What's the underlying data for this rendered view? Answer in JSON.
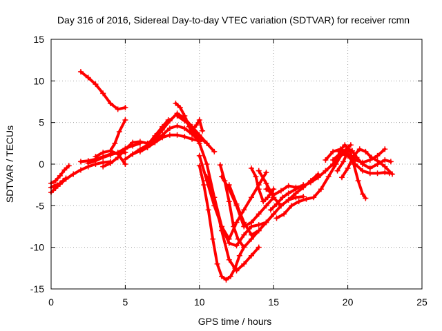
{
  "chart_data": {
    "type": "scatter",
    "title": "Day 316 of 2016, Sidereal Day-to-day VTEC variation (SDTVAR) for receiver rcmn",
    "xlabel": "GPS time / hours",
    "ylabel": "SDTVAR / TECUs",
    "xlim": [
      0,
      25
    ],
    "ylim": [
      -15,
      15
    ],
    "xticks": [
      "0",
      "5",
      "10",
      "15",
      "20",
      "25"
    ],
    "yticks": [
      "15",
      "10",
      "5",
      "0",
      "-5",
      "-10",
      "-15"
    ],
    "xtick_values": [
      0,
      5,
      10,
      15,
      20,
      25
    ],
    "ytick_values": [
      15,
      10,
      5,
      0,
      -5,
      -10,
      -15
    ],
    "grid": true,
    "marker": "plus",
    "series_color": "#ff0000",
    "series": [
      {
        "x": [
          0,
          0.3,
          0.6,
          0.9,
          1.2
        ],
        "y": [
          -2.3,
          -2.0,
          -1.4,
          -0.7,
          -0.2
        ]
      },
      {
        "x": [
          0,
          0.2,
          0.4,
          0.6,
          0.8,
          1.0
        ],
        "y": [
          -2.8,
          -2.6,
          -2.5,
          -2.3,
          -2.0,
          -1.7
        ]
      },
      {
        "x": [
          0,
          0.3,
          0.6,
          1.0,
          1.5,
          2.0,
          2.5,
          3.0,
          3.5,
          4.0
        ],
        "y": [
          -3.4,
          -2.9,
          -2.4,
          -1.8,
          -1.2,
          -0.7,
          -0.3,
          0.0,
          0.2,
          0.3
        ]
      },
      {
        "x": [
          2.0,
          2.5,
          3.0,
          3.5,
          4.0,
          4.5,
          5.0
        ],
        "y": [
          0.3,
          0.4,
          0.6,
          0.9,
          1.2,
          1.3,
          1.4
        ]
      },
      {
        "x": [
          2.5,
          3.0,
          3.5,
          4.0,
          4.5,
          5.0,
          5.5,
          6.0
        ],
        "y": [
          0.1,
          0.4,
          0.8,
          1.1,
          1.4,
          1.9,
          2.2,
          2.5
        ]
      },
      {
        "x": [
          2.0,
          2.5,
          3.0,
          3.5,
          4.0,
          4.5,
          5.0
        ],
        "y": [
          11.1,
          10.4,
          9.6,
          8.5,
          7.3,
          6.6,
          6.8
        ]
      },
      {
        "x": [
          3.0,
          3.5,
          4.0,
          4.5,
          5.0
        ],
        "y": [
          0.9,
          1.4,
          1.6,
          1.2,
          0.0
        ]
      },
      {
        "x": [
          4.0,
          4.3,
          4.6,
          5.0
        ],
        "y": [
          1.6,
          2.5,
          3.9,
          5.3
        ]
      },
      {
        "x": [
          3.5,
          4.0,
          4.5,
          5.0,
          5.5,
          6.0,
          6.5,
          7.0,
          7.5
        ],
        "y": [
          -0.3,
          0.1,
          0.8,
          1.8,
          2.6,
          2.7,
          2.5,
          3.0,
          3.3
        ]
      },
      {
        "x": [
          5.0,
          5.5,
          6.0,
          6.5,
          7.0,
          7.5,
          8.0,
          8.5,
          9.0,
          9.5,
          10.0,
          10.5,
          11.0
        ],
        "y": [
          0.6,
          1.2,
          1.8,
          2.3,
          2.9,
          3.5,
          4.3,
          4.6,
          4.3,
          3.6,
          3.2,
          2.5,
          1.5
        ]
      },
      {
        "x": [
          5.5,
          6.0,
          6.5,
          7.0,
          7.5,
          7.9
        ],
        "y": [
          1.2,
          1.6,
          2.3,
          3.4,
          4.5,
          5.3
        ]
      },
      {
        "x": [
          6.0,
          6.5,
          7.0,
          7.5,
          8.0,
          8.5,
          9.0,
          9.5,
          10.0
        ],
        "y": [
          1.5,
          2.0,
          2.6,
          3.2,
          3.5,
          3.5,
          3.3,
          3.0,
          2.8
        ]
      },
      {
        "x": [
          7.0,
          7.5,
          8.0,
          8.5,
          9.0,
          9.5,
          10.0,
          10.5
        ],
        "y": [
          3.1,
          4.1,
          5.2,
          6.1,
          5.5,
          4.5,
          3.5,
          2.5
        ]
      },
      {
        "x": [
          8.4,
          8.7,
          9.0,
          9.3,
          9.6,
          10.0
        ],
        "y": [
          7.3,
          6.8,
          5.8,
          4.5,
          3.5,
          2.7
        ]
      },
      {
        "x": [
          8.5,
          9.0,
          9.5,
          10.0,
          10.5,
          11.0,
          11.5,
          12.0,
          12.5,
          13.0,
          13.5,
          14.0,
          14.5
        ],
        "y": [
          5.8,
          5.2,
          4.5,
          2.5,
          0.0,
          -4.0,
          -7.5,
          -9.0,
          -7.0,
          -5.5,
          -4.0,
          -2.5,
          -1.0
        ]
      },
      {
        "x": [
          9.5,
          9.8,
          10.0,
          10.2
        ],
        "y": [
          4.0,
          4.7,
          5.3,
          4.0
        ]
      },
      {
        "x": [
          10.0,
          10.5,
          11.0,
          11.5,
          12.0,
          12.5,
          13.0,
          13.5,
          14.0,
          14.5,
          15.0
        ],
        "y": [
          1.0,
          -2.0,
          -5.0,
          -7.5,
          -9.5,
          -9.8,
          -8.5,
          -7.5,
          -7.3,
          -7.0,
          -6.0
        ]
      },
      {
        "x": [
          10.0,
          10.3,
          10.6,
          10.9,
          11.2,
          11.5,
          11.8,
          12.1,
          12.4,
          12.7,
          13.0,
          13.5,
          14.0
        ],
        "y": [
          -0.2,
          -2.5,
          -5.5,
          -9.0,
          -12.0,
          -13.5,
          -13.9,
          -13.5,
          -12.5,
          -11.0,
          -10.0,
          -9.0,
          -8.0
        ]
      },
      {
        "x": [
          10.5,
          11.0,
          11.5,
          12.0,
          12.5,
          13.0,
          13.5,
          14.0
        ],
        "y": [
          -1.5,
          -4.0,
          -8.0,
          -11.5,
          -12.8,
          -12.0,
          -11.0,
          -10.0
        ]
      },
      {
        "x": [
          11.4,
          11.7,
          12.0,
          12.3,
          12.6,
          13.0
        ],
        "y": [
          -0.1,
          -2.0,
          -4.5,
          -7.5,
          -9.0,
          -10.0
        ]
      },
      {
        "x": [
          11.5,
          12.0,
          12.5,
          13.0,
          13.5,
          14.0,
          14.5,
          15.0
        ],
        "y": [
          -1.5,
          -3.0,
          -5.0,
          -7.5,
          -7.0,
          -6.0,
          -5.0,
          -4.0
        ]
      },
      {
        "x": [
          12.0,
          12.5,
          13.0,
          13.5,
          14.0,
          14.5,
          15.0,
          15.5,
          16.0,
          16.5,
          17.0
        ],
        "y": [
          -2.5,
          -4.8,
          -7.0,
          -8.5,
          -8.0,
          -7.0,
          -6.0,
          -5.0,
          -4.3,
          -4.0,
          -3.9
        ]
      },
      {
        "x": [
          13.5,
          13.8,
          14.0,
          14.3,
          14.6,
          15.0
        ],
        "y": [
          -0.5,
          -1.5,
          -3.0,
          -4.5,
          -4.0,
          -3.0
        ]
      },
      {
        "x": [
          14.0,
          14.5,
          15.0,
          15.5,
          16.0,
          16.5,
          17.0,
          17.5,
          18.0
        ],
        "y": [
          -0.8,
          -2.3,
          -4.0,
          -5.0,
          -4.3,
          -3.5,
          -2.8,
          -2.0,
          -1.2
        ]
      },
      {
        "x": [
          14.5,
          15.0,
          15.5,
          16.0,
          16.5,
          17.0,
          17.5,
          18.0,
          18.5,
          19.0,
          19.5,
          20.0
        ],
        "y": [
          -3.0,
          -3.7,
          -3.2,
          -2.6,
          -2.8,
          -2.6,
          -2.2,
          -1.6,
          -0.8,
          0.0,
          1.0,
          1.8
        ]
      },
      {
        "x": [
          15.2,
          15.7,
          16.2,
          16.7,
          17.2,
          17.7,
          18.2,
          18.7,
          19.2,
          19.7,
          20.2
        ],
        "y": [
          -6.5,
          -6.0,
          -5.0,
          -4.5,
          -4.2,
          -4.0,
          -3.0,
          -1.5,
          0.0,
          1.5,
          2.3
        ]
      },
      {
        "x": [
          14.8,
          15.2,
          15.6,
          16.0,
          16.5,
          17.0
        ],
        "y": [
          -5.5,
          -4.8,
          -4.0,
          -3.5,
          -3.0,
          -2.5
        ]
      },
      {
        "x": [
          18.5,
          19.0,
          19.5,
          20.0,
          20.5,
          21.0,
          21.5,
          22.0,
          22.5
        ],
        "y": [
          0.5,
          1.5,
          1.8,
          1.2,
          0.5,
          0.2,
          0.5,
          1.0,
          1.8
        ]
      },
      {
        "x": [
          19.0,
          19.5,
          20.0,
          20.5,
          21.0,
          21.5,
          22.0,
          22.5,
          22.8
        ],
        "y": [
          0.5,
          1.3,
          1.0,
          0.0,
          -0.8,
          -1.1,
          -1.1,
          -1.0,
          -1.1
        ]
      },
      {
        "x": [
          19.3,
          19.7,
          20.0,
          20.3,
          20.6,
          21.0,
          21.5,
          22.0,
          22.5,
          22.9
        ],
        "y": [
          -0.8,
          0.3,
          1.5,
          1.6,
          0.8,
          0.0,
          -0.5,
          0.0,
          0.5,
          0.3
        ]
      },
      {
        "x": [
          19.6,
          20.0,
          20.4,
          20.8,
          21.2,
          21.6,
          22.0,
          22.5,
          23.0
        ],
        "y": [
          -1.6,
          -0.5,
          1.0,
          1.8,
          1.5,
          0.8,
          0.4,
          -0.3,
          -1.2
        ]
      },
      {
        "x": [
          19.4,
          19.8,
          20.1,
          20.4,
          20.7,
          21.0,
          21.2
        ],
        "y": [
          1.5,
          2.3,
          1.8,
          0.0,
          -2.0,
          -3.6,
          -4.1
        ]
      }
    ]
  }
}
